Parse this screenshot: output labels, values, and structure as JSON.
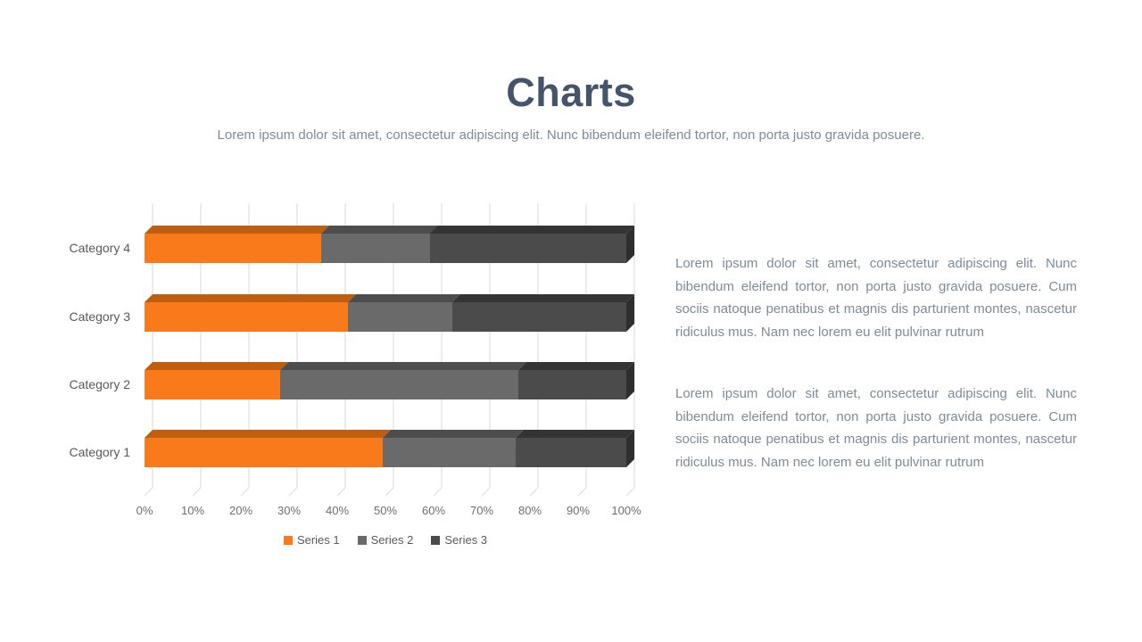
{
  "slide": {
    "title": "Charts",
    "subtitle": "Lorem ipsum dolor sit amet, consectetur adipiscing elit. Nunc bibendum eleifend tortor, non porta justo gravida posuere.",
    "title_color": "#44546A",
    "background_color": "#FFFFFF"
  },
  "body": {
    "paragraph1": "Lorem ipsum dolor sit amet, consectetur adipiscing elit. Nunc bibendum eleifend tortor, non porta justo gravida posuere. Cum sociis natoque penatibus et magnis dis parturient montes, nascetur ridiculus mus. Nam nec lorem eu elit pulvinar rutrum",
    "paragraph2": "Lorem ipsum dolor sit amet, consectetur adipiscing elit. Nunc bibendum eleifend tortor, non porta justo gravida posuere. Cum sociis natoque penatibus et magnis dis parturient montes, nascetur ridiculus mus. Nam nec lorem eu elit pulvinar rutrum",
    "text_color": "#7E8B98"
  },
  "chart_data": {
    "type": "bar",
    "subtype": "horizontal-100%-stacked-3d",
    "title": "",
    "xlabel": "",
    "ylabel": "",
    "categories": [
      "Category 1",
      "Category 2",
      "Category 3",
      "Category 4"
    ],
    "category_display_order_top_to_bottom": [
      "Category 4",
      "Category 3",
      "Category 2",
      "Category 1"
    ],
    "series": [
      {
        "name": "Series 1",
        "values": [
          4.3,
          2.5,
          3.5,
          4.5
        ],
        "color": "#F87A1B",
        "top_color": "#C05E10"
      },
      {
        "name": "Series 2",
        "values": [
          2.4,
          4.4,
          1.8,
          2.8
        ],
        "color": "#6A6A6A",
        "top_color": "#4D4D4D"
      },
      {
        "name": "Series 3",
        "values": [
          2.0,
          2.0,
          3.0,
          5.0
        ],
        "color": "#4B4B4B",
        "top_color": "#343434",
        "end_color": "#2E2E2E"
      }
    ],
    "percent_of_total": {
      "Category 1": [
        49.4,
        27.6,
        23.0
      ],
      "Category 2": [
        28.1,
        49.4,
        22.5
      ],
      "Category 3": [
        42.2,
        21.7,
        36.1
      ],
      "Category 4": [
        36.6,
        22.8,
        40.7
      ]
    },
    "x_ticks": [
      "0%",
      "10%",
      "20%",
      "30%",
      "40%",
      "50%",
      "60%",
      "70%",
      "80%",
      "90%",
      "100%"
    ],
    "xlim": [
      0,
      100
    ],
    "grid": true,
    "gridline_color": "#D9D9D9",
    "legend_position": "bottom",
    "axis_text_color": "#6E6E6E",
    "category_text_color": "#595959"
  }
}
